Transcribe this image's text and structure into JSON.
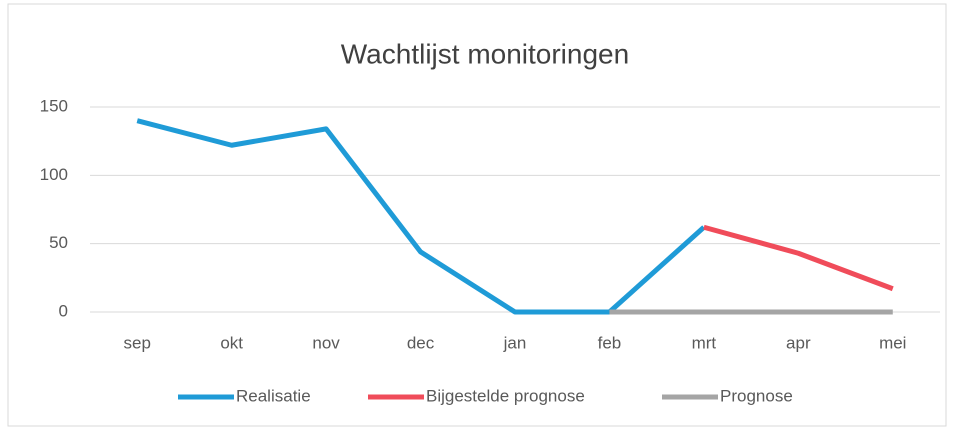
{
  "chart_data": {
    "type": "line",
    "title": "Wachtlijst monitoringen",
    "categories": [
      "sep",
      "okt",
      "nov",
      "dec",
      "jan",
      "feb",
      "mrt",
      "apr",
      "mei"
    ],
    "series": [
      {
        "name": "Realisatie",
        "color": "#1f9bd7",
        "values": [
          140,
          122,
          134,
          44,
          0,
          0,
          62,
          null,
          null
        ]
      },
      {
        "name": "Bijgestelde prognose",
        "color": "#f04c5a",
        "values": [
          null,
          null,
          null,
          null,
          null,
          null,
          62,
          43,
          17
        ]
      },
      {
        "name": "Prognose",
        "color": "#a5a5a5",
        "values": [
          null,
          null,
          null,
          null,
          null,
          0,
          0,
          0,
          0
        ]
      }
    ],
    "ylim": [
      0,
      150
    ],
    "yticks": [
      0,
      50,
      100,
      150
    ],
    "grid": true,
    "legend": "bottom"
  }
}
